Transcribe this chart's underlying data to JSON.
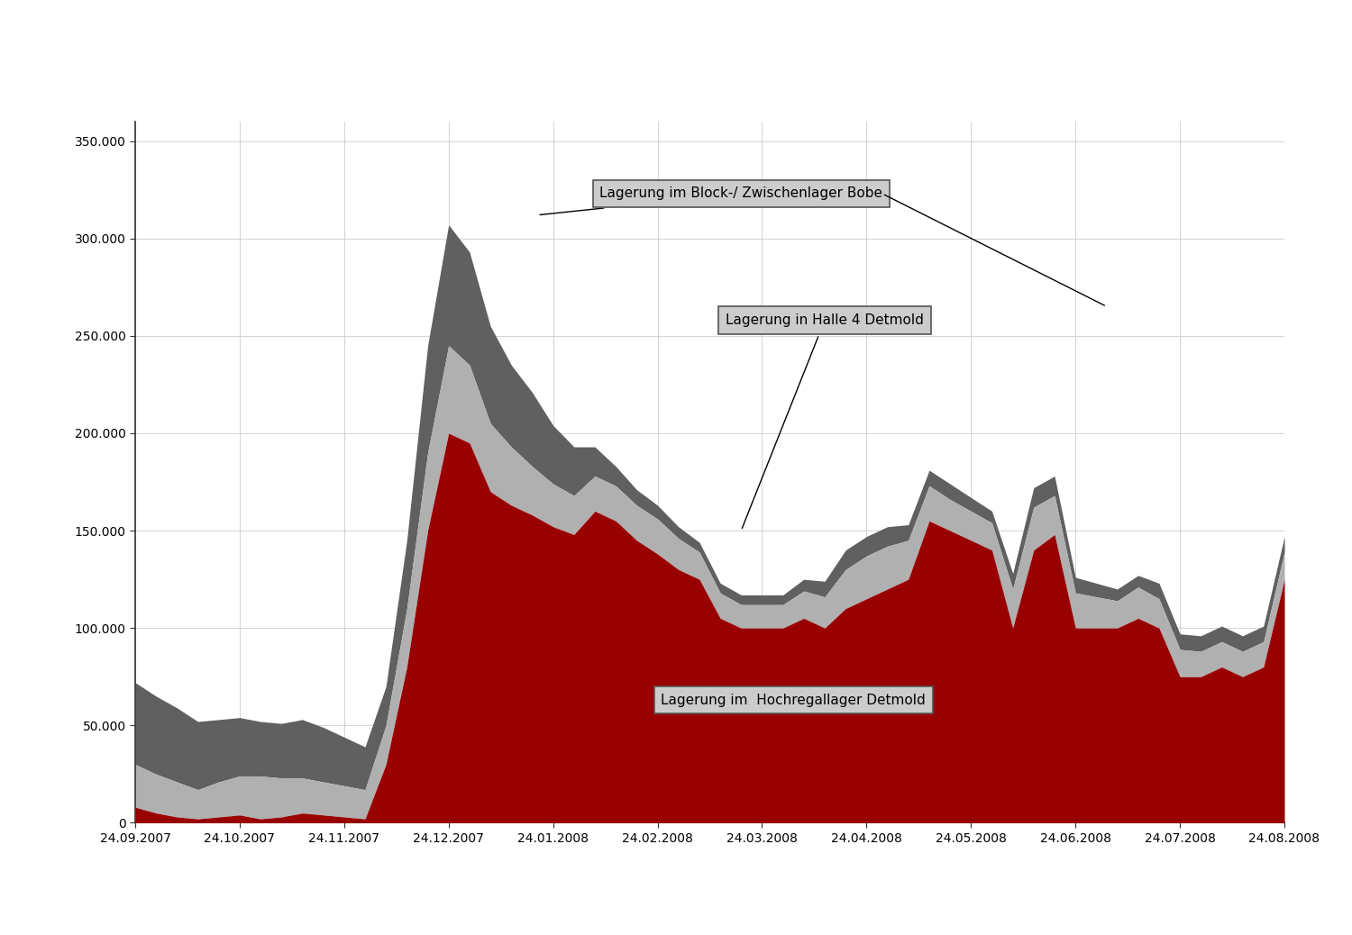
{
  "x_labels": [
    "24.09.2007",
    "24.10.2007",
    "24.11.2007",
    "24.12.2007",
    "24.01.2008",
    "24.02.2008",
    "24.03.2008",
    "24.04.2008",
    "24.05.2008",
    "24.06.2008",
    "24.07.2008",
    "24.08.2008"
  ],
  "color_hochregal": "#990000",
  "color_halle4": "#b0b0b0",
  "color_bobe": "#606060",
  "background": "#ffffff",
  "yticks": [
    0,
    50000,
    100000,
    150000,
    200000,
    250000,
    300000,
    350000
  ],
  "ytick_labels": [
    "0",
    "50.000",
    "100.000",
    "150.000",
    "200.000",
    "250.000",
    "300.000",
    "350.000"
  ],
  "ylim": [
    0,
    360000
  ],
  "annotation_bobe": "Lagerung im Block-/ Zwischenlager Bobe",
  "annotation_halle4": "Lagerung in Halle 4 Detmold",
  "annotation_hochregal": "Lagerung im  Hochregallager Detmold",
  "hochregal": [
    8000,
    5000,
    3000,
    2000,
    3000,
    4000,
    2000,
    3000,
    5000,
    4000,
    3000,
    2000,
    30000,
    80000,
    150000,
    200000,
    195000,
    170000,
    163000,
    158000,
    152000,
    148000,
    160000,
    155000,
    145000,
    138000,
    130000,
    125000,
    105000,
    100000,
    100000,
    100000,
    105000,
    100000,
    110000,
    115000,
    120000,
    125000,
    155000,
    150000,
    145000,
    140000,
    100000,
    140000,
    148000,
    100000,
    100000,
    100000,
    105000,
    100000,
    75000,
    75000,
    80000,
    75000,
    80000,
    125000
  ],
  "halle4": [
    22000,
    20000,
    18000,
    15000,
    18000,
    20000,
    22000,
    20000,
    18000,
    17000,
    16000,
    15000,
    20000,
    30000,
    40000,
    45000,
    40000,
    35000,
    30000,
    25000,
    22000,
    20000,
    18000,
    18000,
    18000,
    18000,
    16000,
    14000,
    13000,
    12000,
    12000,
    12000,
    14000,
    16000,
    20000,
    22000,
    22000,
    20000,
    18000,
    16000,
    15000,
    14000,
    20000,
    22000,
    20000,
    18000,
    16000,
    14000,
    16000,
    15000,
    14000,
    13000,
    13000,
    13000,
    13000,
    14000
  ],
  "bobe": [
    42000,
    40000,
    38000,
    35000,
    32000,
    30000,
    28000,
    28000,
    30000,
    28000,
    25000,
    22000,
    20000,
    35000,
    55000,
    62000,
    58000,
    50000,
    42000,
    38000,
    30000,
    25000,
    15000,
    10000,
    8000,
    7000,
    6000,
    5000,
    5000,
    5000,
    5000,
    5000,
    6000,
    8000,
    10000,
    10000,
    10000,
    8000,
    8000,
    8000,
    7000,
    6000,
    8000,
    10000,
    10000,
    8000,
    7000,
    6000,
    6000,
    8000,
    8000,
    8000,
    8000,
    8000,
    8000,
    8000
  ]
}
